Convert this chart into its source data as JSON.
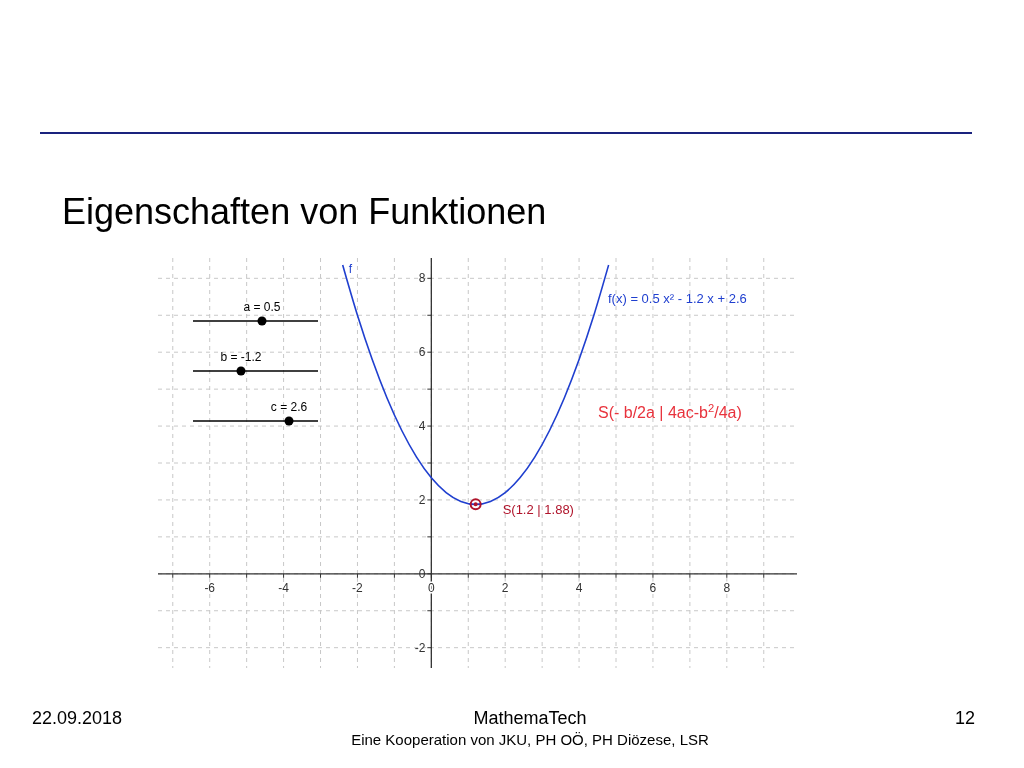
{
  "chart_data": {
    "type": "line",
    "title": "Eigenschaften von Funktionen",
    "xlim": [
      -7.4,
      9.9
    ],
    "ylim": [
      -2.55,
      8.55
    ],
    "xticks": [
      {
        "value": -7,
        "label": null
      },
      -6,
      {
        "value": -5,
        "label": null
      },
      -4,
      {
        "value": -3,
        "label": null
      },
      -2,
      {
        "value": -1,
        "label": null
      },
      0,
      {
        "value": 1,
        "label": null
      },
      2,
      {
        "value": 3,
        "label": null
      },
      4,
      {
        "value": 5,
        "label": null
      },
      6,
      {
        "value": 7,
        "label": null
      },
      8,
      {
        "value": 9,
        "label": null
      }
    ],
    "yticks": [
      {
        "value": -2,
        "label": "-2"
      },
      {
        "value": -1,
        "label": null
      },
      0,
      {
        "value": 1,
        "label": null
      },
      2,
      {
        "value": 3,
        "label": null
      },
      4,
      {
        "value": 5,
        "label": null
      },
      6,
      {
        "value": 7,
        "label": null
      },
      8
    ],
    "grid": true,
    "line_style": "solid",
    "series": [
      {
        "name": "f",
        "color": "#1f3fcf",
        "marker": "none",
        "x": [
          -2.4,
          -2.0,
          -1.6,
          -1.2,
          -0.8,
          -0.4,
          0,
          0.4,
          0.8,
          1.2,
          1.6,
          2.0,
          2.4,
          2.8,
          3.2,
          3.6,
          4.0,
          4.4,
          4.8
        ],
        "values": [
          8.36,
          7.0,
          5.8,
          4.76,
          3.88,
          3.16,
          2.6,
          2.2,
          1.96,
          1.88,
          1.96,
          2.2,
          2.6,
          3.16,
          3.88,
          4.76,
          5.8,
          7.0,
          8.36
        ]
      },
      {
        "type": "scatter",
        "color": "#b0142b",
        "marker": "circle",
        "x": [
          1.2
        ],
        "values": [
          1.88
        ]
      }
    ],
    "annotations": [
      "f(x) = 0.5 x² - 1.2 x + 2.6",
      "S(- b/2a | 4ac-b$^{2}$/4a)",
      {
        "text": "S(1.2 | 1.88)",
        "x": 1.2,
        "y": 1.88
      },
      "a = 0.5",
      "b = -1.2",
      "c = 2.6",
      "22.09.2018",
      "MathemaTech",
      "Eine Kooperation von JKU, PH OÖ, PH Diözese, LSR",
      "12"
    ]
  }
}
